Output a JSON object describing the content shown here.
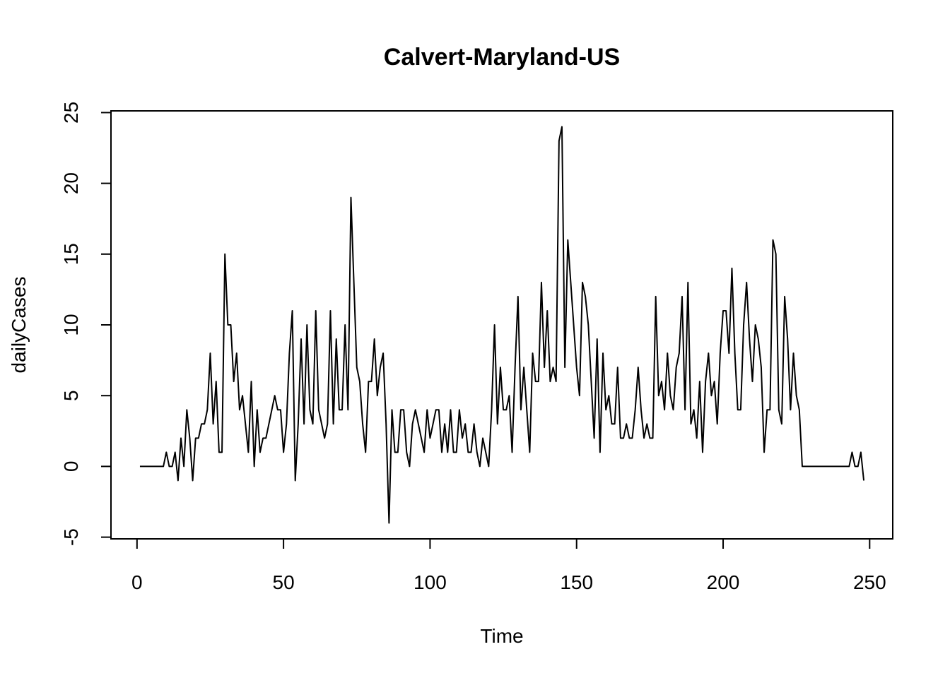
{
  "chart_data": {
    "type": "line",
    "title": "Calvert-Maryland-US",
    "x_label": "Time",
    "y_label": "dailyCases",
    "x": [
      1,
      2,
      3,
      4,
      5,
      6,
      7,
      8,
      9,
      10,
      11,
      12,
      13,
      14,
      15,
      16,
      17,
      18,
      19,
      20,
      21,
      22,
      23,
      24,
      25,
      26,
      27,
      28,
      29,
      30,
      31,
      32,
      33,
      34,
      35,
      36,
      37,
      38,
      39,
      40,
      41,
      42,
      43,
      44,
      45,
      46,
      47,
      48,
      49,
      50,
      51,
      52,
      53,
      54,
      55,
      56,
      57,
      58,
      59,
      60,
      61,
      62,
      63,
      64,
      65,
      66,
      67,
      68,
      69,
      70,
      71,
      72,
      73,
      74,
      75,
      76,
      77,
      78,
      79,
      80,
      81,
      82,
      83,
      84,
      85,
      86,
      87,
      88,
      89,
      90,
      91,
      92,
      93,
      94,
      95,
      96,
      97,
      98,
      99,
      100,
      101,
      102,
      103,
      104,
      105,
      106,
      107,
      108,
      109,
      110,
      111,
      112,
      113,
      114,
      115,
      116,
      117,
      118,
      119,
      120,
      121,
      122,
      123,
      124,
      125,
      126,
      127,
      128,
      129,
      130,
      131,
      132,
      133,
      134,
      135,
      136,
      137,
      138,
      139,
      140,
      141,
      142,
      143,
      144,
      145,
      146,
      147,
      148,
      149,
      150,
      151,
      152,
      153,
      154,
      155,
      156,
      157,
      158,
      159,
      160,
      161,
      162,
      163,
      164,
      165,
      166,
      167,
      168,
      169,
      170,
      171,
      172,
      173,
      174,
      175,
      176,
      177,
      178,
      179,
      180,
      181,
      182,
      183,
      184,
      185,
      186,
      187,
      188,
      189,
      190,
      191,
      192,
      193,
      194,
      195,
      196,
      197,
      198,
      199,
      200,
      201,
      202,
      203,
      204,
      205,
      206,
      207,
      208,
      209,
      210,
      211,
      212,
      213,
      214,
      215,
      216,
      217,
      218,
      219,
      220,
      221,
      222,
      223,
      224,
      225,
      226,
      227,
      228,
      229,
      230,
      231,
      232,
      233,
      234,
      235,
      236,
      237,
      238,
      239,
      240,
      241,
      242,
      243,
      244,
      245,
      246,
      247,
      248
    ],
    "series": [
      {
        "color": "#000000",
        "values": [
          0,
          0,
          0,
          0,
          0,
          0,
          0,
          0,
          0,
          1,
          0,
          0,
          1,
          -1,
          2,
          0,
          4,
          2,
          -1,
          2,
          2,
          3,
          3,
          4,
          8,
          3,
          6,
          1,
          1,
          15,
          10,
          10,
          6,
          8,
          4,
          5,
          3,
          1,
          6,
          0,
          4,
          1,
          2,
          2,
          3,
          4,
          5,
          4,
          4,
          1,
          3,
          8,
          11,
          -1,
          3,
          9,
          3,
          10,
          4,
          3,
          11,
          4,
          3,
          2,
          3,
          11,
          3,
          9,
          4,
          4,
          10,
          4,
          19,
          13,
          7,
          6,
          3,
          1,
          6,
          6,
          9,
          5,
          7,
          8,
          3,
          -4,
          4,
          1,
          1,
          4,
          4,
          1,
          0,
          3,
          4,
          3,
          2,
          1,
          4,
          2,
          3,
          4,
          4,
          1,
          3,
          1,
          4,
          1,
          1,
          4,
          2,
          3,
          1,
          1,
          3,
          1,
          0,
          2,
          1,
          0,
          4,
          10,
          3,
          7,
          4,
          4,
          5,
          1,
          7,
          12,
          4,
          7,
          4,
          1,
          8,
          6,
          6,
          13,
          7,
          11,
          6,
          7,
          6,
          23,
          24,
          7,
          16,
          13,
          10,
          7,
          5,
          13,
          12,
          10,
          6,
          2,
          9,
          1,
          8,
          4,
          5,
          3,
          3,
          7,
          2,
          2,
          3,
          2,
          2,
          4,
          7,
          4,
          2,
          3,
          2,
          2,
          12,
          5,
          6,
          4,
          8,
          5,
          4,
          7,
          8,
          12,
          4,
          13,
          3,
          4,
          2,
          6,
          1,
          6,
          8,
          5,
          6,
          3,
          8,
          11,
          11,
          8,
          14,
          8,
          4,
          4,
          10,
          13,
          9,
          6,
          10,
          9,
          7,
          1,
          4,
          4,
          16,
          15,
          4,
          3,
          12,
          9,
          4,
          8,
          5,
          4,
          0,
          0,
          0,
          0,
          0,
          0,
          0,
          0,
          0,
          0,
          0,
          0,
          0,
          0,
          0,
          0,
          0,
          1,
          0,
          0,
          1,
          -1
        ]
      }
    ],
    "xlim": [
      -8.88,
      257.88
    ],
    "ylim": [
      -5.12,
      25.12
    ],
    "xticks": [
      0,
      50,
      100,
      150,
      200,
      250
    ],
    "yticks": [
      -5,
      0,
      5,
      10,
      15,
      20,
      25
    ]
  }
}
